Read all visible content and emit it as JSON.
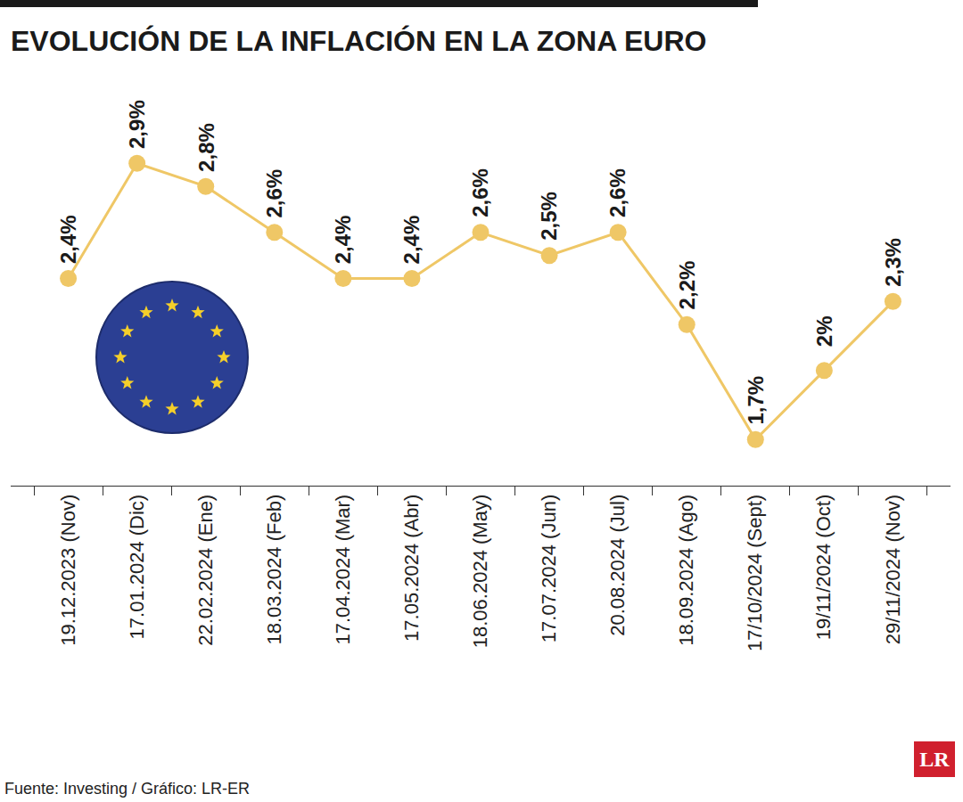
{
  "chart_data": {
    "type": "line",
    "title": "EVOLUCIÓN DE LA INFLACIÓN EN LA ZONA EURO",
    "source": "Fuente: Investing / Gráfico: LR-ER",
    "logo": "LR",
    "categories": [
      "19.12.2023 (Nov)",
      "17.01.2024 (Dic)",
      "22.02.2024 (Ene)",
      "18.03.2024 (Feb)",
      "17.04.2024 (Mar)",
      "17.05.2024 (Abr)",
      "18.06.2024 (May)",
      "17.07.2024 (Jun)",
      "20.08.2024 (Jul)",
      "18.09.2024 (Ago)",
      "17/10/2024 (Sept)",
      "19/11/2024 (Oct)",
      "29/11/2024 (Nov)"
    ],
    "values": [
      2.4,
      2.9,
      2.8,
      2.6,
      2.4,
      2.4,
      2.6,
      2.5,
      2.6,
      2.2,
      1.7,
      2.0,
      2.3
    ],
    "value_labels": [
      "2,4%",
      "2,9%",
      "2,8%",
      "2,6%",
      "2,4%",
      "2,4%",
      "2,6%",
      "2,5%",
      "2,6%",
      "2,2%",
      "1,7%",
      "2%",
      "2,3%"
    ],
    "color": "#efc766",
    "marker": "circle",
    "data_labels": true,
    "tick_labels": "x",
    "grid": false,
    "ylim": [
      1.5,
      3.3
    ]
  }
}
